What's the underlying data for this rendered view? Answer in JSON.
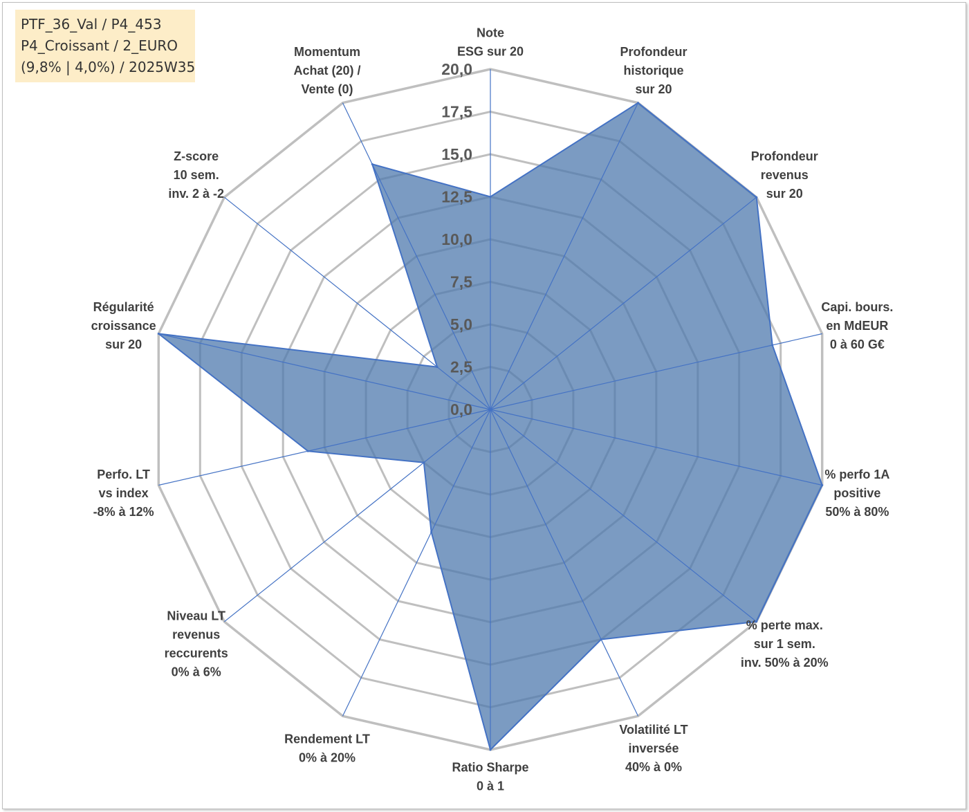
{
  "info_box": {
    "line1": "PTF_36_Val / P4_453",
    "line2": "P4_Croissant / 2_EURO",
    "line3": "(9,8% | 4,0%) / 2025W35"
  },
  "colors": {
    "grid": "#bfbfbf",
    "spoke": "#4472c4",
    "fill": "#4f79ad",
    "outline": "#4472c4"
  },
  "chart_data": {
    "type": "radar",
    "range": [
      0,
      20
    ],
    "ticks": [
      "0,0",
      "2,5",
      "5,0",
      "7,5",
      "10,0",
      "12,5",
      "15,0",
      "17,5",
      "20,0"
    ],
    "axes": [
      {
        "label": [
          "Note",
          "ESG sur 20"
        ],
        "value": 12.5
      },
      {
        "label": [
          "Profondeur",
          "historique",
          "sur 20"
        ],
        "value": 20
      },
      {
        "label": [
          "Profondeur",
          "revenus",
          "sur 20"
        ],
        "value": 20
      },
      {
        "label": [
          "Capi. bours.",
          "en MdEUR",
          "0 à 60 G€"
        ],
        "value": 17
      },
      {
        "label": [
          "% perfo 1A",
          "positive",
          "50% à 80%"
        ],
        "value": 20
      },
      {
        "label": [
          "% perte max.",
          "sur 1 sem.",
          "inv. 50% à 20%"
        ],
        "value": 20
      },
      {
        "label": [
          "Volatilité LT",
          "inversée",
          "40% à 0%"
        ],
        "value": 15
      },
      {
        "label": [
          "Ratio Sharpe",
          "0 à 1"
        ],
        "value": 20
      },
      {
        "label": [
          "Rendement LT",
          "0% à 20%"
        ],
        "value": 8
      },
      {
        "label": [
          "Niveau LT",
          "revenus",
          "reccurents",
          "0% à 6%"
        ],
        "value": 5
      },
      {
        "label": [
          "Perfo. LT",
          "vs index",
          "-8% à 12%"
        ],
        "value": 11
      },
      {
        "label": [
          "Régularité",
          "croissance",
          "sur 20"
        ],
        "value": 20
      },
      {
        "label": [
          "Z-score",
          "10 sem.",
          "inv. 2 à -2"
        ],
        "value": 4
      },
      {
        "label": [
          "Momentum",
          "Achat (20) /",
          "Vente (0)"
        ],
        "value": 16
      }
    ]
  }
}
